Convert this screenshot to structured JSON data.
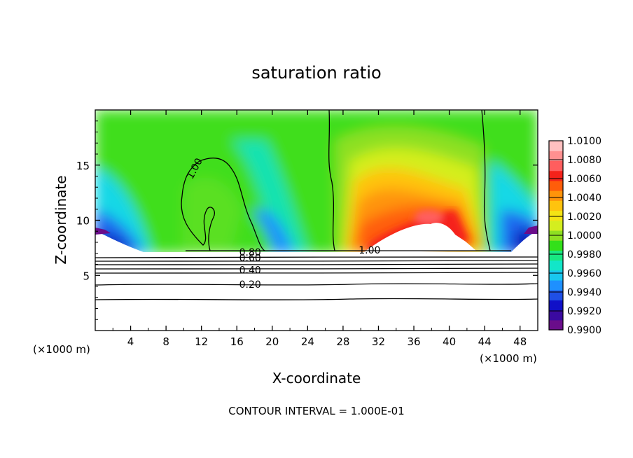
{
  "chart_data": {
    "type": "heatmap",
    "title": "saturation ratio",
    "xlabel": "X-coordinate",
    "ylabel": "Z-coordinate",
    "x_unit_left": "(×1000 m)",
    "x_unit_right": "(×1000 m)",
    "footer": "CONTOUR INTERVAL = 1.000E-01",
    "xlim": [
      0,
      50
    ],
    "ylim": [
      0,
      20
    ],
    "x_ticks": [
      4,
      8,
      12,
      16,
      20,
      24,
      28,
      32,
      36,
      40,
      44,
      48
    ],
    "y_ticks": [
      5,
      10,
      15
    ],
    "colorbar": {
      "labels": [
        "1.0100",
        "1.0080",
        "1.0060",
        "1.0040",
        "1.0020",
        "1.0000",
        "0.9980",
        "0.9960",
        "0.9940",
        "0.9920",
        "0.9900"
      ],
      "colors": [
        "#6a0d8a",
        "#3a0aa0",
        "#1010c8",
        "#1f4fe6",
        "#1e90ff",
        "#19c7f0",
        "#12e6c8",
        "#18e882",
        "#33e01a",
        "#8ee022",
        "#d4ee1f",
        "#f4e414",
        "#ffc30e",
        "#ff940a",
        "#ff5d0a",
        "#f5221a",
        "#ff5e5e",
        "#ff9090",
        "#ffc0c0"
      ]
    },
    "contour_labels": [
      {
        "value": "1.00",
        "x": 11.2,
        "z": 14.7
      },
      {
        "value": "1.00",
        "x": 31.0,
        "z": 7.3
      },
      {
        "value": "0.80",
        "x": 17.5,
        "z": 7.1
      },
      {
        "value": "0.60",
        "x": 17.5,
        "z": 6.6
      },
      {
        "value": "0.40",
        "x": 17.5,
        "z": 5.5
      },
      {
        "value": "0.20",
        "x": 17.5,
        "z": 4.2
      }
    ],
    "hot_spot": {
      "x": 33.5,
      "z": 11.0,
      "value": 1.009
    },
    "cloud_base_z": 7.2
  }
}
